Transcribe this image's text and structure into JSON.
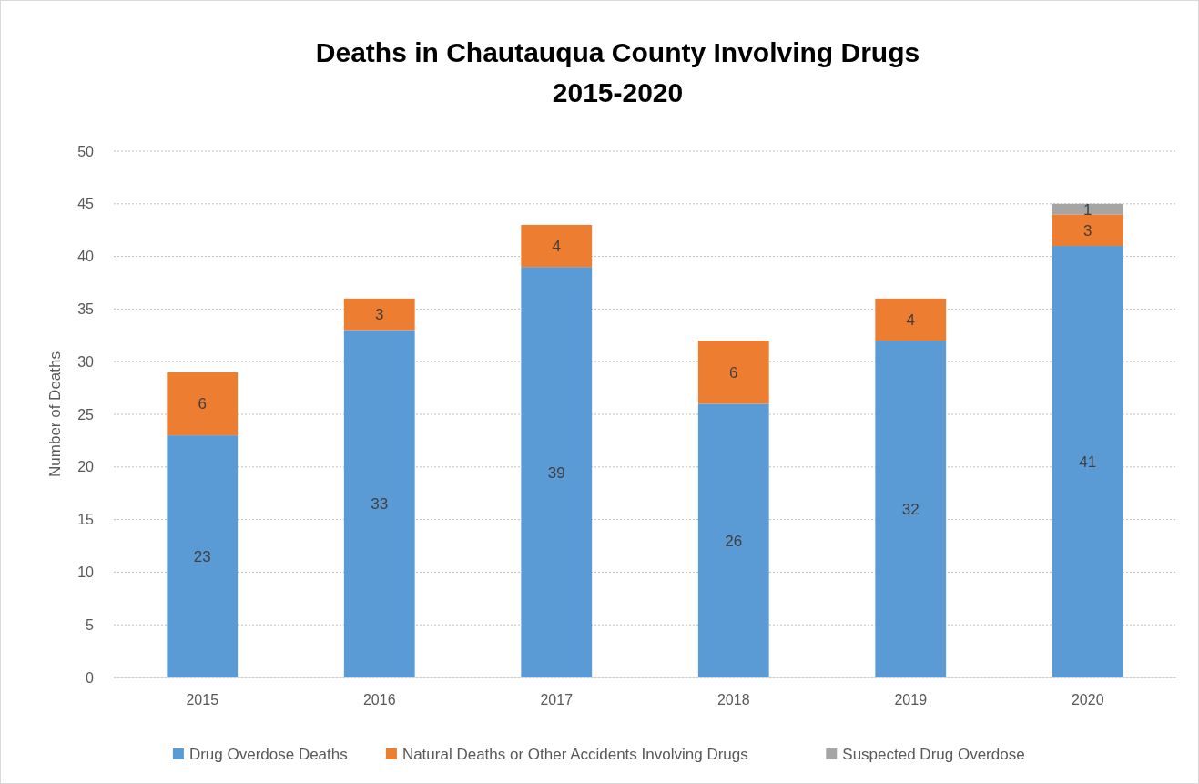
{
  "chart_data": {
    "type": "bar",
    "title": "Deaths in Chautauqua County Involving Drugs\n2015-2020",
    "ylabel": "Number of Deaths",
    "categories": [
      "2015",
      "2016",
      "2017",
      "2018",
      "2019",
      "2020"
    ],
    "series": [
      {
        "name": "Drug Overdose Deaths",
        "color": "#5b9bd5",
        "values": [
          23,
          33,
          39,
          26,
          32,
          41
        ]
      },
      {
        "name": "Natural Deaths or Other Accidents Involving Drugs",
        "color": "#ed7d31",
        "values": [
          6,
          3,
          4,
          6,
          4,
          3
        ]
      },
      {
        "name": "Suspected Drug Overdose",
        "color": "#a5a5a5",
        "values": [
          null,
          null,
          null,
          null,
          null,
          1
        ]
      }
    ],
    "stacked": true,
    "ylim": [
      0,
      50
    ],
    "yticks": [
      0,
      5,
      10,
      15,
      20,
      25,
      30,
      35,
      40,
      45,
      50
    ],
    "grid": "y",
    "legend": "bottom",
    "data_labels": true
  }
}
